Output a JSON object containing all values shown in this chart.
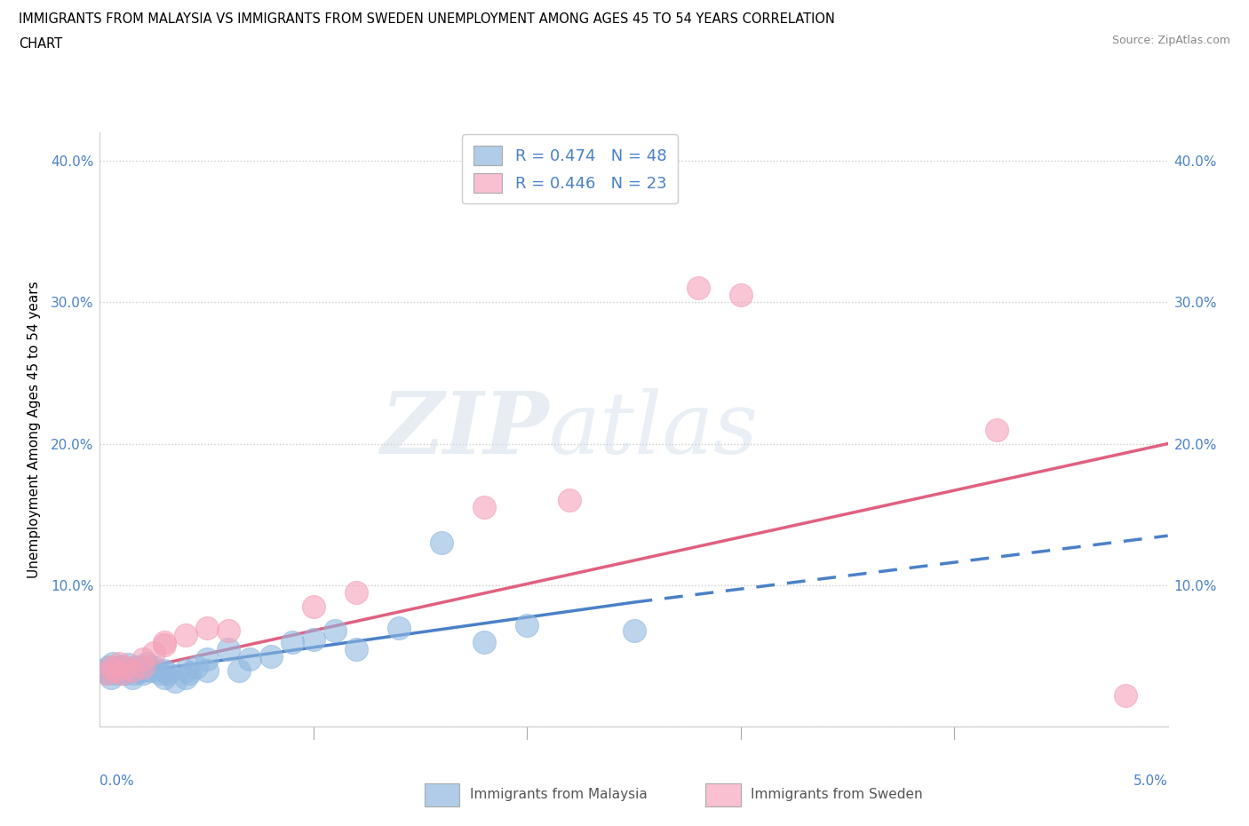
{
  "title_line1": "IMMIGRANTS FROM MALAYSIA VS IMMIGRANTS FROM SWEDEN UNEMPLOYMENT AMONG AGES 45 TO 54 YEARS CORRELATION",
  "title_line2": "CHART",
  "source_text": "Source: ZipAtlas.com",
  "ylabel": "Unemployment Among Ages 45 to 54 years",
  "watermark_zip": "ZIP",
  "watermark_atlas": "atlas",
  "malaysia_R": 0.474,
  "malaysia_N": 48,
  "sweden_R": 0.446,
  "sweden_N": 23,
  "malaysia_dot_color": "#90b8e0",
  "sweden_dot_color": "#f4a0b8",
  "malaysia_line_color": "#4a80c8",
  "sweden_line_color": "#e06080",
  "malaysia_legend_color": "#b0cce8",
  "sweden_legend_color": "#f8c0d0",
  "xlim": [
    0.0,
    0.05
  ],
  "ylim": [
    0.0,
    0.42
  ],
  "yticks": [
    0.0,
    0.1,
    0.2,
    0.3,
    0.4
  ],
  "malaysia_scatter_x": [
    0.0002,
    0.0003,
    0.0004,
    0.0005,
    0.0006,
    0.0007,
    0.0008,
    0.0009,
    0.001,
    0.001,
    0.001,
    0.0012,
    0.0013,
    0.0014,
    0.0015,
    0.0016,
    0.0017,
    0.0018,
    0.002,
    0.002,
    0.002,
    0.0022,
    0.0024,
    0.0025,
    0.0028,
    0.003,
    0.003,
    0.0032,
    0.0035,
    0.004,
    0.004,
    0.0042,
    0.0045,
    0.005,
    0.005,
    0.006,
    0.0065,
    0.007,
    0.008,
    0.009,
    0.01,
    0.011,
    0.012,
    0.014,
    0.016,
    0.018,
    0.02,
    0.025
  ],
  "malaysia_scatter_y": [
    0.04,
    0.038,
    0.042,
    0.035,
    0.045,
    0.038,
    0.04,
    0.042,
    0.038,
    0.042,
    0.04,
    0.038,
    0.044,
    0.04,
    0.035,
    0.038,
    0.042,
    0.04,
    0.04,
    0.038,
    0.042,
    0.045,
    0.04,
    0.042,
    0.038,
    0.04,
    0.035,
    0.038,
    0.032,
    0.04,
    0.035,
    0.038,
    0.042,
    0.048,
    0.04,
    0.055,
    0.04,
    0.048,
    0.05,
    0.06,
    0.062,
    0.068,
    0.055,
    0.07,
    0.13,
    0.06,
    0.072,
    0.068
  ],
  "sweden_scatter_x": [
    0.0003,
    0.0005,
    0.0007,
    0.0009,
    0.001,
    0.0012,
    0.0015,
    0.002,
    0.002,
    0.0025,
    0.003,
    0.003,
    0.004,
    0.005,
    0.006,
    0.01,
    0.012,
    0.018,
    0.022,
    0.028,
    0.03,
    0.042,
    0.048
  ],
  "sweden_scatter_y": [
    0.038,
    0.042,
    0.04,
    0.045,
    0.038,
    0.042,
    0.04,
    0.042,
    0.048,
    0.052,
    0.058,
    0.06,
    0.065,
    0.07,
    0.068,
    0.085,
    0.095,
    0.155,
    0.16,
    0.31,
    0.305,
    0.21,
    0.022
  ],
  "background_color": "#ffffff",
  "grid_color": "#cccccc",
  "text_blue": "#4a80c8"
}
